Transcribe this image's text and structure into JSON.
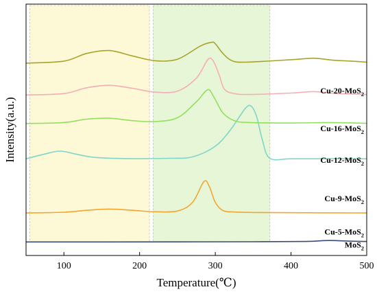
{
  "chart_data": {
    "type": "line",
    "xlabel": "Temperature(℃)",
    "ylabel": "Intensity(a.u.)",
    "xlim": [
      50,
      500
    ],
    "x_ticks": [
      "100",
      "200",
      "300",
      "400",
      "500"
    ],
    "grid": false,
    "legend": "inline labels at right",
    "regions": [
      {
        "x_start": 55,
        "x_end": 213,
        "color": "#fdf8d6",
        "border": "#d8d2a8"
      },
      {
        "x_start": 218,
        "x_end": 372,
        "color": "#e6f6d6",
        "border": "#b8d8a8"
      }
    ],
    "series": [
      {
        "name": "MoS2",
        "label_main": "MoS",
        "label_sub": "2",
        "color": "#3a4a78",
        "offset": 2.8,
        "label_level": 1.6,
        "x": [
          50,
          150,
          250,
          350,
          420,
          450,
          480,
          500
        ],
        "y": [
          0,
          0,
          0.02,
          0.04,
          0.1,
          0.3,
          0.15,
          0.1
        ]
      },
      {
        "name": "Cu-5-MoS2",
        "label_main": "Cu-5-MoS",
        "label_sub": "2",
        "color": "#f2a630",
        "offset": 8.8,
        "label_level": 4.3,
        "x": [
          50,
          100,
          130,
          160,
          190,
          220,
          250,
          270,
          285,
          292,
          300,
          310,
          325,
          350,
          400,
          450,
          500
        ],
        "y": [
          0,
          0.15,
          0.55,
          0.8,
          0.55,
          0.25,
          0.4,
          2.2,
          6.5,
          5.5,
          2.2,
          0.5,
          0.2,
          0.1,
          0.05,
          0.02,
          0
        ],
        "x_data": [
          50,
          100,
          130,
          160,
          190,
          220,
          250,
          270,
          285,
          292,
          300,
          310,
          325,
          350,
          400,
          450,
          500
        ]
      },
      {
        "name": "Cu-9-MoS2",
        "label_main": "Cu-9-MoS",
        "label_sub": "2",
        "color": "#7ed6c8",
        "offset": 20.0,
        "label_level": 11.2,
        "x": [
          50,
          75,
          95,
          115,
          140,
          180,
          240,
          270,
          300,
          320,
          340,
          348,
          355,
          362,
          372,
          400,
          450,
          500
        ],
        "y": [
          0,
          1.0,
          1.6,
          1.0,
          0.3,
          0.05,
          0.1,
          0.4,
          2.6,
          6.0,
          10.5,
          10.8,
          8.5,
          4.0,
          0.1,
          0,
          0,
          0
        ]
      },
      {
        "name": "Cu-12-MoS2",
        "label_main": "Cu-12-MoS",
        "label_sub": "2",
        "color": "#92e05c",
        "offset": 27.3,
        "label_level": 19.2,
        "x": [
          50,
          100,
          130,
          160,
          190,
          220,
          250,
          275,
          290,
          298,
          310,
          325,
          345,
          400,
          450,
          500
        ],
        "y": [
          0,
          0.2,
          0.9,
          1.1,
          0.6,
          0.4,
          1.2,
          4.5,
          7.0,
          5.5,
          2.2,
          0.6,
          0.2,
          0.1,
          0.2,
          0.05
        ]
      },
      {
        "name": "Cu-16-MoS2",
        "label_main": "Cu-16-MoS",
        "label_sub": "2",
        "color": "#f4aeb6",
        "offset": 33.2,
        "label_level": 25.7,
        "x": [
          50,
          100,
          130,
          160,
          190,
          220,
          250,
          275,
          290,
          297,
          305,
          312,
          325,
          345,
          400,
          430,
          460,
          500
        ],
        "y": [
          0,
          0.3,
          1.5,
          2.0,
          1.4,
          0.6,
          0.8,
          3.5,
          7.3,
          7.1,
          4.2,
          1.2,
          0.3,
          0.1,
          0.4,
          0.7,
          0.3,
          0.1
        ]
      },
      {
        "name": "Cu-20-MoS2",
        "label_main": "Cu-20-MoS",
        "label_sub": "2",
        "color": "#a9a32a",
        "offset": 39.8,
        "label_level": 33.5,
        "x": [
          50,
          100,
          130,
          160,
          190,
          220,
          250,
          280,
          295,
          300,
          310,
          322,
          340,
          400,
          430,
          455,
          480,
          500
        ],
        "y": [
          0,
          0.4,
          2.0,
          2.6,
          1.5,
          0.5,
          0.8,
          3.5,
          4.3,
          4.0,
          2.0,
          0.5,
          0.2,
          0.7,
          1.0,
          0.6,
          0.4,
          0.2
        ]
      }
    ]
  }
}
